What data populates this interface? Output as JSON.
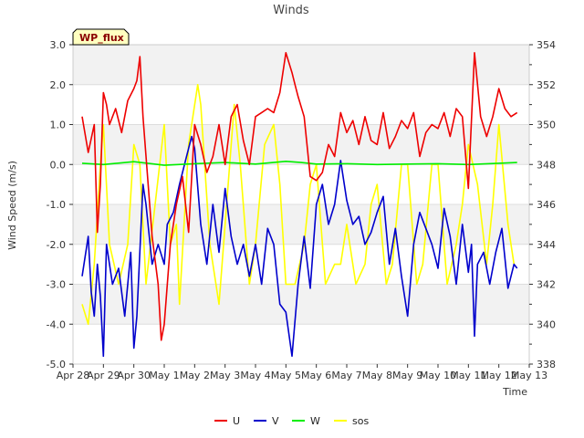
{
  "chart_data": {
    "type": "line",
    "title": "Winds",
    "badge": "WP_flux",
    "xlabel": "Time",
    "ylabel": "Wind Speed (m/s)",
    "xlim": [
      0,
      15
    ],
    "ylim": [
      -5.0,
      3.0
    ],
    "y2lim": [
      338,
      354
    ],
    "x_ticks": [
      {
        "value": 0,
        "label": "Apr 28"
      },
      {
        "value": 1,
        "label": "Apr 29"
      },
      {
        "value": 2,
        "label": "Apr 30"
      },
      {
        "value": 3,
        "label": "May 1"
      },
      {
        "value": 4,
        "label": "May 2"
      },
      {
        "value": 5,
        "label": "May 3"
      },
      {
        "value": 6,
        "label": "May 4"
      },
      {
        "value": 7,
        "label": "May 5"
      },
      {
        "value": 8,
        "label": "May 6"
      },
      {
        "value": 9,
        "label": "May 7"
      },
      {
        "value": 10,
        "label": "May 8"
      },
      {
        "value": 11,
        "label": "May 9"
      },
      {
        "value": 12,
        "label": "May 10"
      },
      {
        "value": 13,
        "label": "May 11"
      },
      {
        "value": 14,
        "label": "May 12"
      },
      {
        "value": 15,
        "label": "May 13"
      }
    ],
    "y_ticks": [
      {
        "value": 3.0,
        "label": "3.0"
      },
      {
        "value": 2.0,
        "label": "2.0"
      },
      {
        "value": 1.0,
        "label": "1.0"
      },
      {
        "value": 0.0,
        "label": "0.0"
      },
      {
        "value": -1.0,
        "label": "-1.0"
      },
      {
        "value": -2.0,
        "label": "-2.0"
      },
      {
        "value": -3.0,
        "label": "-3.0"
      },
      {
        "value": -4.0,
        "label": "-4.0"
      },
      {
        "value": -5.0,
        "label": "-5.0"
      }
    ],
    "y2_ticks": [
      {
        "value": 354,
        "label": "354"
      },
      {
        "value": 352,
        "label": "352"
      },
      {
        "value": 350,
        "label": "350"
      },
      {
        "value": 348,
        "label": "348"
      },
      {
        "value": 346,
        "label": "346"
      },
      {
        "value": 344,
        "label": "344"
      },
      {
        "value": 342,
        "label": "342"
      },
      {
        "value": 340,
        "label": "340"
      },
      {
        "value": 338,
        "label": "338"
      }
    ],
    "series": [
      {
        "name": "U",
        "axis": "left",
        "color": "#ee0000",
        "x": [
          0.3,
          0.5,
          0.7,
          0.8,
          0.9,
          1.0,
          1.1,
          1.2,
          1.4,
          1.6,
          1.8,
          2.0,
          2.1,
          2.2,
          2.3,
          2.45,
          2.6,
          2.8,
          2.9,
          3.0,
          3.2,
          3.4,
          3.6,
          3.8,
          4.0,
          4.2,
          4.4,
          4.6,
          4.8,
          5.0,
          5.2,
          5.4,
          5.6,
          5.8,
          6.0,
          6.2,
          6.4,
          6.6,
          6.8,
          7.0,
          7.2,
          7.3,
          7.4,
          7.6,
          7.8,
          8.0,
          8.2,
          8.4,
          8.6,
          8.8,
          9.0,
          9.2,
          9.4,
          9.6,
          9.8,
          10.0,
          10.2,
          10.4,
          10.6,
          10.8,
          11.0,
          11.2,
          11.4,
          11.6,
          11.8,
          12.0,
          12.2,
          12.4,
          12.6,
          12.8,
          13.0,
          13.2,
          13.4,
          13.6,
          13.8,
          14.0,
          14.2,
          14.4,
          14.6
        ],
        "y": [
          1.2,
          0.3,
          1.0,
          -1.7,
          -0.5,
          1.8,
          1.5,
          1.0,
          1.4,
          0.8,
          1.6,
          1.9,
          2.1,
          2.7,
          1.2,
          -0.3,
          -1.8,
          -3.0,
          -4.4,
          -4.0,
          -2.0,
          -1.0,
          -0.3,
          -1.7,
          1.0,
          0.5,
          -0.2,
          0.2,
          1.0,
          0.0,
          1.2,
          1.5,
          0.6,
          0.0,
          1.2,
          1.3,
          1.4,
          1.3,
          1.8,
          2.8,
          2.3,
          2.0,
          1.7,
          1.2,
          -0.3,
          -0.4,
          -0.2,
          0.5,
          0.2,
          1.3,
          0.8,
          1.1,
          0.5,
          1.2,
          0.6,
          0.5,
          1.3,
          0.4,
          0.7,
          1.1,
          0.9,
          1.3,
          0.2,
          0.8,
          1.0,
          0.9,
          1.3,
          0.7,
          1.4,
          1.2,
          -0.6,
          2.8,
          1.2,
          0.7,
          1.2,
          1.9,
          1.4,
          1.2,
          1.3
        ]
      },
      {
        "name": "V",
        "axis": "left",
        "color": "#0000cc",
        "x": [
          0.3,
          0.5,
          0.6,
          0.7,
          0.8,
          0.9,
          1.0,
          1.1,
          1.3,
          1.5,
          1.7,
          1.9,
          2.0,
          2.1,
          2.3,
          2.4,
          2.6,
          2.8,
          3.0,
          3.1,
          3.3,
          3.5,
          3.7,
          3.9,
          4.0,
          4.2,
          4.4,
          4.6,
          4.8,
          5.0,
          5.2,
          5.4,
          5.6,
          5.8,
          6.0,
          6.2,
          6.4,
          6.6,
          6.8,
          7.0,
          7.2,
          7.4,
          7.6,
          7.8,
          8.0,
          8.2,
          8.4,
          8.6,
          8.8,
          9.0,
          9.2,
          9.4,
          9.6,
          9.8,
          10.0,
          10.2,
          10.4,
          10.6,
          10.8,
          11.0,
          11.2,
          11.4,
          11.6,
          11.8,
          12.0,
          12.2,
          12.4,
          12.6,
          12.8,
          13.0,
          13.1,
          13.2,
          13.3,
          13.5,
          13.7,
          13.9,
          14.1,
          14.3,
          14.5,
          14.6
        ],
        "y": [
          -2.8,
          -1.8,
          -3.2,
          -3.8,
          -2.5,
          -3.3,
          -4.8,
          -2.0,
          -3.0,
          -2.6,
          -3.8,
          -2.2,
          -4.6,
          -3.8,
          -0.5,
          -1.0,
          -2.5,
          -2.0,
          -2.5,
          -1.5,
          -1.2,
          -0.5,
          0.1,
          0.7,
          0.4,
          -1.5,
          -2.5,
          -1.0,
          -2.2,
          -0.6,
          -1.8,
          -2.5,
          -2.0,
          -2.8,
          -2.0,
          -3.0,
          -1.6,
          -2.0,
          -3.5,
          -3.7,
          -4.8,
          -3.0,
          -1.8,
          -3.1,
          -1.0,
          -0.5,
          -1.5,
          -1.0,
          0.1,
          -0.9,
          -1.5,
          -1.3,
          -2.0,
          -1.7,
          -1.2,
          -0.8,
          -2.5,
          -1.6,
          -2.8,
          -3.8,
          -2.0,
          -1.2,
          -1.6,
          -2.0,
          -2.6,
          -1.1,
          -1.8,
          -3.0,
          -1.5,
          -2.7,
          -2.0,
          -4.3,
          -2.5,
          -2.2,
          -3.0,
          -2.2,
          -1.6,
          -3.1,
          -2.5,
          -2.6
        ]
      },
      {
        "name": "W",
        "axis": "left",
        "color": "#00ee00",
        "x": [
          0.3,
          1.0,
          2.0,
          3.0,
          4.0,
          5.0,
          6.0,
          7.0,
          7.5,
          8.0,
          9.0,
          10.0,
          11.0,
          12.0,
          13.0,
          14.0,
          14.6
        ],
        "y": [
          0.03,
          0.0,
          0.07,
          -0.02,
          0.02,
          0.05,
          0.01,
          0.08,
          0.05,
          0.01,
          0.02,
          0.0,
          0.01,
          0.02,
          0.0,
          0.03,
          0.05
        ]
      },
      {
        "name": "sos",
        "axis": "right",
        "color": "#ffff00",
        "x": [
          0.3,
          0.5,
          0.7,
          0.9,
          1.0,
          1.2,
          1.5,
          1.8,
          2.0,
          2.2,
          2.4,
          2.7,
          3.0,
          3.2,
          3.4,
          3.5,
          3.8,
          4.1,
          4.2,
          4.5,
          4.8,
          5.0,
          5.3,
          5.5,
          5.8,
          6.0,
          6.3,
          6.6,
          6.8,
          7.0,
          7.3,
          7.6,
          7.8,
          8.0,
          8.3,
          8.6,
          8.8,
          9.0,
          9.3,
          9.6,
          9.8,
          10.0,
          10.3,
          10.5,
          10.8,
          11.0,
          11.3,
          11.5,
          11.8,
          12.0,
          12.3,
          12.6,
          12.8,
          13.0,
          13.3,
          13.6,
          13.8,
          14.0,
          14.3,
          14.5
        ],
        "y": [
          341,
          340,
          343,
          348,
          350,
          344,
          342,
          344,
          349,
          348,
          342,
          346,
          350,
          344,
          345,
          341,
          349,
          352,
          351,
          344,
          341,
          345,
          351,
          348,
          342,
          344,
          349,
          350,
          347,
          342,
          342,
          344,
          347,
          348,
          342,
          343,
          343,
          345,
          342,
          343,
          346,
          347,
          342,
          343,
          348,
          348,
          342,
          343,
          348,
          348,
          342,
          344,
          346,
          349,
          347,
          343,
          346,
          350,
          345,
          343
        ]
      }
    ]
  }
}
